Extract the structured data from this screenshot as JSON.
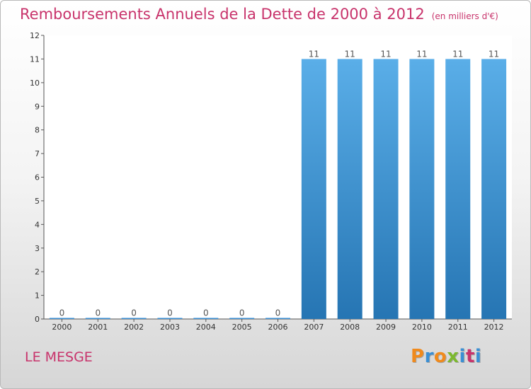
{
  "chart_data": {
    "type": "bar",
    "title": "Remboursements Annuels de la Dette de 2000 à 2012",
    "unit_note": "(en milliers d'€)",
    "categories": [
      "2000",
      "2001",
      "2002",
      "2003",
      "2004",
      "2005",
      "2006",
      "2007",
      "2008",
      "2009",
      "2010",
      "2011",
      "2012"
    ],
    "values": [
      0,
      0,
      0,
      0,
      0,
      0,
      0,
      11,
      11,
      11,
      11,
      11,
      11
    ],
    "data_labels": [
      "0",
      "0",
      "0",
      "0",
      "0",
      "0",
      "0",
      "11",
      "11",
      "11",
      "11",
      "11",
      "11"
    ],
    "yticks": [
      "0",
      "1",
      "2",
      "3",
      "4",
      "5",
      "6",
      "7",
      "8",
      "9",
      "10",
      "11",
      "12"
    ],
    "ylim": [
      0,
      12
    ],
    "xlabel": "",
    "ylabel": "",
    "bar_color": "#3a8fd4",
    "bar_color_top": "#5aaee8",
    "bar_color_bottom": "#2675b3"
  },
  "footer": {
    "commune": "LE MESGE",
    "logo": [
      "P",
      "r",
      "o",
      "x",
      "i",
      "t",
      "i"
    ],
    "logo_colors": [
      "#f08a1c",
      "#3a8fd4",
      "#f08a1c",
      "#7cb82f",
      "#3a8fd4",
      "#c8336b",
      "#3a8fd4"
    ]
  }
}
